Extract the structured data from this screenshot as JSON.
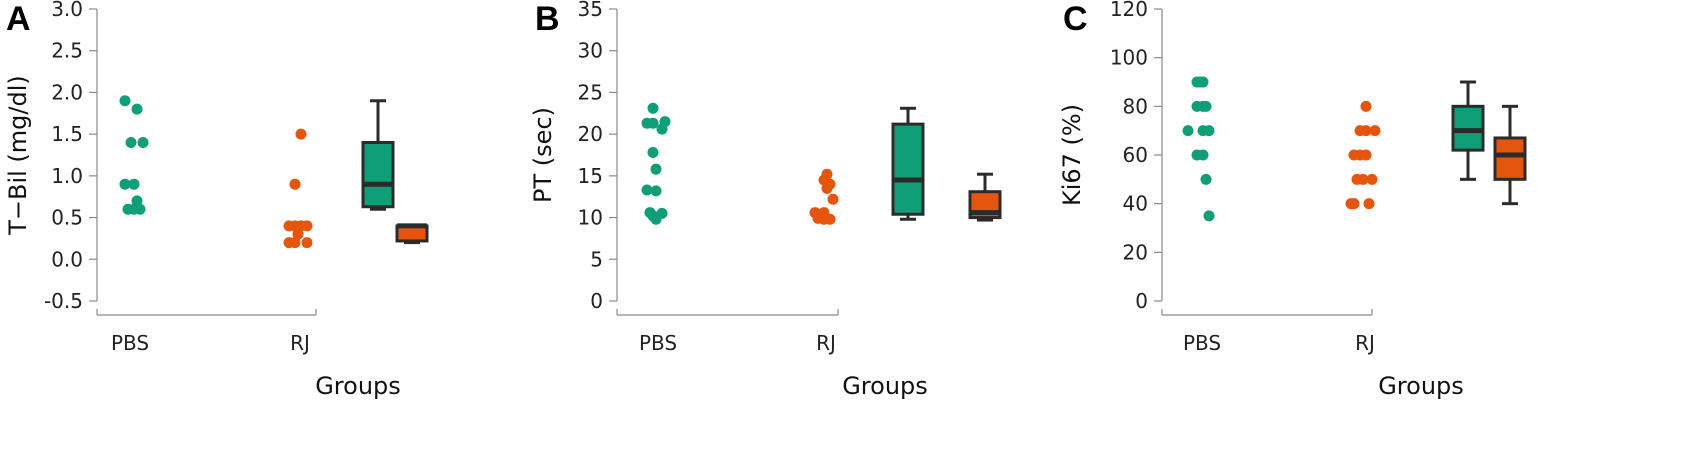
{
  "colors": {
    "pbs": "#109e78",
    "rj": "#e6550d"
  },
  "chart_data": [
    {
      "type": "scatter+box",
      "panel_label": "A",
      "ylabel": "T−Bil (mg/dl)",
      "xlabel": "Groups",
      "categories": [
        "PBS",
        "RJ"
      ],
      "ylim": [
        -0.5,
        3.0
      ],
      "yticks": [
        "-0.5",
        "0.0",
        "0.5",
        "1.0",
        "1.5",
        "2.0",
        "2.5",
        "3.0"
      ],
      "tick_values": [
        -0.5,
        0.0,
        0.5,
        1.0,
        1.5,
        2.0,
        2.5,
        3.0
      ],
      "series": [
        {
          "name": "PBS",
          "points": [
            [
              0.0,
              1.9
            ],
            [
              0.2,
              1.8
            ],
            [
              0.1,
              1.4
            ],
            [
              0.3,
              1.4
            ],
            [
              0.0,
              0.9
            ],
            [
              0.15,
              0.9
            ],
            [
              0.2,
              0.7
            ],
            [
              0.05,
              0.6
            ],
            [
              0.15,
              0.6
            ],
            [
              0.25,
              0.6
            ]
          ],
          "box": {
            "min": 0.6,
            "q1": 0.63,
            "median": 0.9,
            "q3": 1.4,
            "max": 1.9
          }
        },
        {
          "name": "RJ",
          "points": [
            [
              0.1,
              1.5
            ],
            [
              0.0,
              0.9
            ],
            [
              -0.1,
              0.4
            ],
            [
              0.0,
              0.4
            ],
            [
              0.1,
              0.4
            ],
            [
              0.2,
              0.4
            ],
            [
              0.05,
              0.3
            ],
            [
              -0.1,
              0.2
            ],
            [
              0.0,
              0.2
            ],
            [
              0.2,
              0.2
            ]
          ],
          "box": {
            "min": 0.2,
            "q1": 0.22,
            "median": 0.4,
            "q3": 0.4,
            "max": 0.41
          }
        }
      ]
    },
    {
      "type": "scatter+box",
      "panel_label": "B",
      "ylabel": "PT (sec)",
      "xlabel": "Groups",
      "categories": [
        "PBS",
        "RJ"
      ],
      "ylim": [
        0,
        35
      ],
      "yticks": [
        "0",
        "5",
        "10",
        "15",
        "20",
        "25",
        "30",
        "35"
      ],
      "tick_values": [
        0,
        5,
        10,
        15,
        20,
        25,
        30,
        35
      ],
      "series": [
        {
          "name": "PBS",
          "points": [
            [
              0.0,
              23.1
            ],
            [
              -0.1,
              21.3
            ],
            [
              0.0,
              21.3
            ],
            [
              0.2,
              21.5
            ],
            [
              0.15,
              20.6
            ],
            [
              0.0,
              17.8
            ],
            [
              0.05,
              15.8
            ],
            [
              -0.1,
              13.3
            ],
            [
              0.05,
              13.2
            ],
            [
              -0.05,
              10.6
            ],
            [
              0.15,
              10.5
            ],
            [
              0.0,
              10.2
            ],
            [
              0.05,
              9.8
            ]
          ],
          "box": {
            "min": 9.8,
            "q1": 10.4,
            "median": 14.5,
            "q3": 21.2,
            "max": 23.1
          }
        },
        {
          "name": "RJ",
          "points": [
            [
              0.1,
              15.2
            ],
            [
              0.05,
              14.5
            ],
            [
              0.15,
              14.0
            ],
            [
              0.1,
              13.5
            ],
            [
              0.2,
              12.2
            ],
            [
              -0.1,
              10.6
            ],
            [
              0.0,
              10.4
            ],
            [
              0.05,
              10.6
            ],
            [
              -0.05,
              9.9
            ],
            [
              0.05,
              9.8
            ],
            [
              0.15,
              9.8
            ]
          ],
          "box": {
            "min": 9.7,
            "q1": 10.0,
            "median": 10.6,
            "q3": 13.1,
            "max": 15.2
          }
        }
      ]
    },
    {
      "type": "scatter+box",
      "panel_label": "C",
      "ylabel": "Ki67 (%)",
      "xlabel": "Groups",
      "categories": [
        "PBS",
        "RJ"
      ],
      "ylim": [
        0,
        120
      ],
      "yticks": [
        "0",
        "20",
        "40",
        "60",
        "80",
        "100",
        "120"
      ],
      "tick_values": [
        0,
        20,
        40,
        60,
        80,
        100,
        120
      ],
      "series": [
        {
          "name": "PBS",
          "points": [
            [
              0.0,
              90
            ],
            [
              0.05,
              90
            ],
            [
              0.1,
              90
            ],
            [
              0.0,
              80
            ],
            [
              0.1,
              80
            ],
            [
              0.15,
              80
            ],
            [
              -0.15,
              70
            ],
            [
              0.1,
              70
            ],
            [
              0.2,
              70
            ],
            [
              0.0,
              60
            ],
            [
              0.1,
              60
            ],
            [
              0.15,
              50
            ],
            [
              0.2,
              35
            ]
          ],
          "box": {
            "min": 50,
            "q1": 62,
            "median": 70,
            "q3": 80,
            "max": 90
          }
        },
        {
          "name": "RJ",
          "points": [
            [
              0.1,
              80
            ],
            [
              0.0,
              70
            ],
            [
              0.1,
              70
            ],
            [
              0.25,
              70
            ],
            [
              -0.1,
              60
            ],
            [
              0.0,
              60
            ],
            [
              0.1,
              60
            ],
            [
              -0.05,
              50
            ],
            [
              0.05,
              50
            ],
            [
              0.2,
              50
            ],
            [
              -0.15,
              40
            ],
            [
              -0.1,
              40
            ],
            [
              0.15,
              40
            ]
          ],
          "box": {
            "min": 40,
            "q1": 50,
            "median": 60,
            "q3": 67,
            "max": 80
          }
        }
      ]
    }
  ]
}
